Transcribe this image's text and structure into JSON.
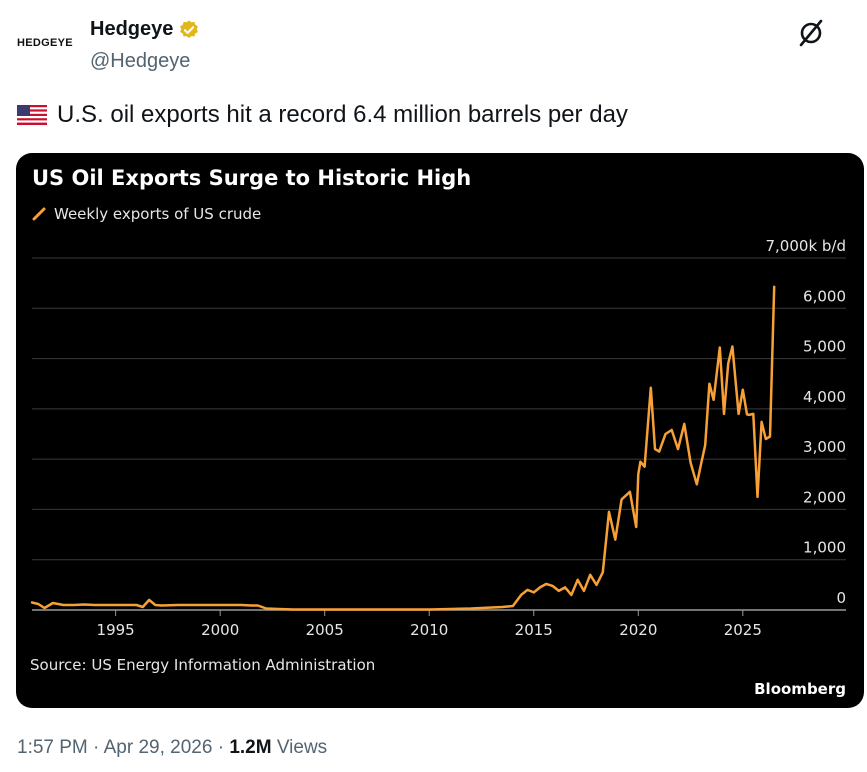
{
  "account": {
    "avatar_text": "HEDGEYE",
    "name": "Hedgeye",
    "handle": "@Hedgeye",
    "verified_icon": "verified-badge-icon"
  },
  "tweet": {
    "text": "U.S. oil exports hit a record 6.4 million barrels per day",
    "flag_icon": "us-flag-icon"
  },
  "meta": {
    "time": "1:57 PM",
    "date": "Apr 29, 2026",
    "views_count": "1.2M",
    "views_label": "Views"
  },
  "colors": {
    "line": "#f7a035",
    "background": "#000000",
    "text": "#ffffff"
  },
  "chart_data": {
    "type": "line",
    "title": "US Oil Exports Surge to Historic High",
    "legend": "Weekly exports of US crude",
    "unit_label": "7,000k b/d",
    "source": "Source: US Energy Information Administration",
    "brand": "Bloomberg",
    "y_ticks": [
      "7,000k b/d",
      "6,000",
      "5,000",
      "4,000",
      "3,000",
      "2,000",
      "1,000",
      "0"
    ],
    "y_tick_values": [
      7000,
      6000,
      5000,
      4000,
      3000,
      2000,
      1000,
      0
    ],
    "x_ticks": [
      "1995",
      "2000",
      "2005",
      "2010",
      "2015",
      "2020",
      "2025"
    ],
    "x_tick_values": [
      1995,
      2000,
      2005,
      2010,
      2015,
      2020,
      2025
    ],
    "xlim": [
      1991,
      2028.5
    ],
    "ylim": [
      0,
      7000
    ],
    "grid": true,
    "series": [
      {
        "name": "Weekly exports of US crude",
        "x": [
          1991,
          1991.3,
          1991.6,
          1992,
          1992.5,
          1993,
          1993.5,
          1994,
          1995,
          1996,
          1996.3,
          1996.6,
          1996.9,
          1997.2,
          1998,
          1999,
          2000,
          2001,
          2001.5,
          2001.8,
          2002.2,
          2002.8,
          2003.5,
          2005,
          2008,
          2010,
          2012,
          2013.5,
          2014,
          2014.4,
          2014.7,
          2015,
          2015.3,
          2015.6,
          2015.9,
          2016.2,
          2016.5,
          2016.8,
          2017.1,
          2017.4,
          2017.7,
          2018,
          2018.3,
          2018.6,
          2018.9,
          2019.2,
          2019.6,
          2019.9,
          2020,
          2020.1,
          2020.3,
          2020.6,
          2020.8,
          2021,
          2021.3,
          2021.6,
          2021.9,
          2022.2,
          2022.5,
          2022.8,
          2023,
          2023.2,
          2023.4,
          2023.6,
          2023.9,
          2024.1,
          2024.3,
          2024.5,
          2024.8,
          2025,
          2025.2,
          2025.3,
          2025.5,
          2025.7,
          2025.9,
          2026.1,
          2026.3,
          2026.5
        ],
        "values": [
          150,
          120,
          40,
          140,
          100,
          100,
          110,
          100,
          100,
          100,
          60,
          200,
          100,
          90,
          100,
          100,
          100,
          100,
          90,
          90,
          30,
          20,
          10,
          10,
          10,
          10,
          30,
          60,
          80,
          300,
          400,
          350,
          450,
          520,
          480,
          380,
          450,
          300,
          600,
          380,
          700,
          500,
          750,
          1950,
          1400,
          2200,
          2350,
          1650,
          2700,
          2950,
          2850,
          4420,
          3200,
          3150,
          3500,
          3580,
          3200,
          3700,
          2930,
          2500,
          2900,
          3280,
          4500,
          4180,
          5220,
          3900,
          4900,
          5240,
          3900,
          4380,
          3890,
          3880,
          3900,
          2250,
          3740,
          3400,
          3450,
          6430
        ]
      }
    ]
  }
}
